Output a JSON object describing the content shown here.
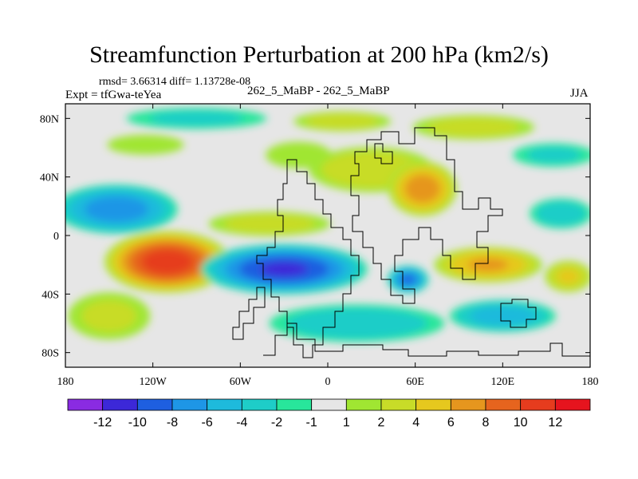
{
  "chart_data": {
    "type": "filled-contour map",
    "title": "Streamfunction Perturbation at 200 hPa (km2/s)",
    "stats_text": "rmsd= 3.66314  diff= 1.13728e-08",
    "experiment_label": "Expt = tfGwa-teYea",
    "experiments": "262_5_MaBP - 262_5_MaBP",
    "season": "JJA",
    "xlim": [
      -180,
      180
    ],
    "ylim": [
      -90,
      90
    ],
    "x_ticks": [
      {
        "value": -180,
        "label": "180"
      },
      {
        "value": -120,
        "label": "120W"
      },
      {
        "value": -60,
        "label": "60W"
      },
      {
        "value": 0,
        "label": "0"
      },
      {
        "value": 60,
        "label": "60E"
      },
      {
        "value": 120,
        "label": "120E"
      },
      {
        "value": 180,
        "label": "180"
      }
    ],
    "y_ticks": [
      {
        "value": 80,
        "label": "80N"
      },
      {
        "value": 40,
        "label": "40N"
      },
      {
        "value": 0,
        "label": "0"
      },
      {
        "value": -40,
        "label": "40S"
      },
      {
        "value": -80,
        "label": "80S"
      }
    ],
    "colorbar": {
      "labels": [
        "-12",
        "-10",
        "-8",
        "-6",
        "-4",
        "-2",
        "-1",
        "1",
        "2",
        "4",
        "6",
        "8",
        "10",
        "12"
      ],
      "colors": [
        "#8a2be2",
        "#3c28d8",
        "#1e5fe0",
        "#1e96e6",
        "#1ebadc",
        "#1ecdc8",
        "#28e69b",
        "#e6e6e6",
        "#a0e632",
        "#c8dc28",
        "#e6c81e",
        "#e6961e",
        "#e6641e",
        "#e63c1e",
        "#e6141e"
      ]
    },
    "features": [
      {
        "name": "pos-west-north-pacific",
        "lon": -125,
        "lat": 62,
        "rx": 35,
        "ry": 9,
        "value": 1.5
      },
      {
        "name": "pos-north-atlantic",
        "lon": -20,
        "lat": 55,
        "rx": 30,
        "ry": 12,
        "value": 1.5
      },
      {
        "name": "pos-greenland",
        "lon": 10,
        "lat": 78,
        "rx": 40,
        "ry": 8,
        "value": 2.5
      },
      {
        "name": "pos-siberia",
        "lon": 100,
        "lat": 74,
        "rx": 50,
        "ry": 10,
        "value": 2.5
      },
      {
        "name": "pos-europe-band",
        "lon": 30,
        "lat": 45,
        "rx": 50,
        "ry": 18,
        "value": 3
      },
      {
        "name": "pos-asia-max",
        "lon": 65,
        "lat": 32,
        "rx": 25,
        "ry": 20,
        "value": 7
      },
      {
        "name": "pos-tropical-atlantic",
        "lon": -40,
        "lat": 8,
        "rx": 50,
        "ry": 10,
        "value": 2.5
      },
      {
        "name": "pos-south-pacific-max",
        "lon": -110,
        "lat": -18,
        "rx": 45,
        "ry": 22,
        "value": 11
      },
      {
        "name": "pos-indian-ocean",
        "lon": 110,
        "lat": -20,
        "rx": 40,
        "ry": 13,
        "value": 6
      },
      {
        "name": "pos-south-east-pacific",
        "lon": 165,
        "lat": -28,
        "rx": 18,
        "ry": 12,
        "value": 4
      },
      {
        "name": "pos-southern-band",
        "lon": -150,
        "lat": -55,
        "rx": 35,
        "ry": 20,
        "value": 2
      },
      {
        "name": "neg-north-pacific",
        "lon": -145,
        "lat": 18,
        "rx": 45,
        "ry": 18,
        "value": -7
      },
      {
        "name": "neg-north-band",
        "lon": -90,
        "lat": 80,
        "rx": 60,
        "ry": 9,
        "value": -2
      },
      {
        "name": "neg-arctic-east",
        "lon": 155,
        "lat": 55,
        "rx": 35,
        "ry": 10,
        "value": -2
      },
      {
        "name": "neg-east-north-pacific",
        "lon": 160,
        "lat": 15,
        "rx": 25,
        "ry": 12,
        "value": -3
      },
      {
        "name": "neg-south-america",
        "lon": -30,
        "lat": -23,
        "rx": 60,
        "ry": 18,
        "value": -10
      },
      {
        "name": "neg-africa",
        "lon": 55,
        "lat": -30,
        "rx": 15,
        "ry": 10,
        "value": -8
      },
      {
        "name": "neg-south-atlantic",
        "lon": 20,
        "lat": -60,
        "rx": 70,
        "ry": 15,
        "value": -3
      },
      {
        "name": "neg-south-indian",
        "lon": 120,
        "lat": -55,
        "rx": 40,
        "ry": 12,
        "value": -5
      }
    ]
  }
}
